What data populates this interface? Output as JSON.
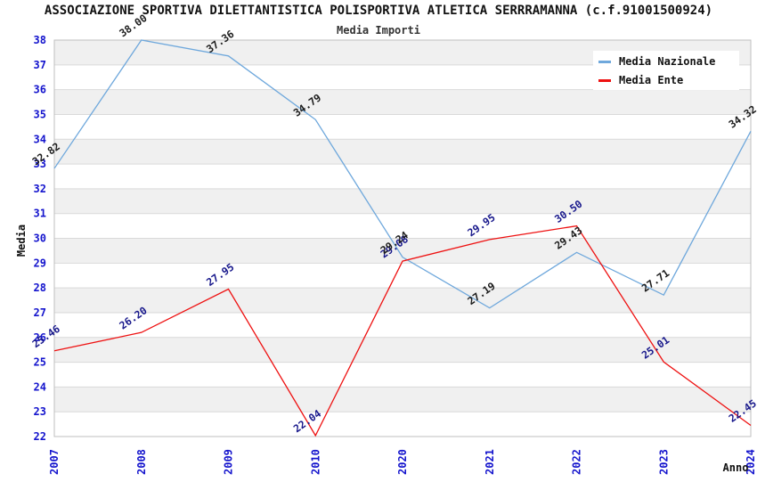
{
  "title": "ASSOCIAZIONE SPORTIVA DILETTANTISTICA POLISPORTIVA ATLETICA SERRRAMANNA (c.f.91001500924)",
  "subtitle": "Media Importi",
  "legend": {
    "items": [
      {
        "label": "Media Nazionale",
        "color": "#6fa8dc"
      },
      {
        "label": "Media Ente",
        "color": "#ee1111"
      }
    ]
  },
  "chart_data": {
    "type": "line",
    "title": "ASSOCIAZIONE SPORTIVA DILETTANTISTICA POLISPORTIVA ATLETICA SERRRAMANNA (c.f.91001500924)",
    "subtitle": "Media Importi",
    "x": [
      "2007",
      "2008",
      "2009",
      "2010",
      "2020",
      "2021",
      "2022",
      "2023",
      "2024"
    ],
    "series": [
      {
        "name": "Media Nazionale",
        "color": "#6fa8dc",
        "label_color": "#1c1c1c",
        "values": [
          32.82,
          38.0,
          37.36,
          34.79,
          29.24,
          27.19,
          29.43,
          27.71,
          34.32
        ]
      },
      {
        "name": "Media Ente",
        "color": "#ee1111",
        "label_color": "#19198c",
        "values": [
          25.46,
          26.2,
          27.95,
          22.04,
          29.08,
          29.95,
          30.5,
          25.01,
          22.45
        ]
      }
    ],
    "xlabel": "Anno",
    "ylabel": "Media",
    "ylim": [
      22,
      38
    ],
    "ytick_step": 1,
    "xtick_rotation": -90,
    "point_label_rotation": -35,
    "grid": true,
    "legend_position": "top-right",
    "band_colors": [
      "#ffffff",
      "#f0f0f0"
    ],
    "tick_label_color": "#1414cd",
    "gridline_color": "#d9d9d9",
    "border_color": "#bfbfbf"
  }
}
